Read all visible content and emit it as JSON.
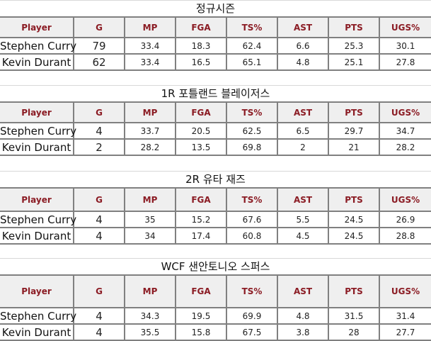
{
  "columns": [
    "Player",
    "G",
    "MP",
    "FGA",
    "TS%",
    "AST",
    "PTS",
    "UGS%"
  ],
  "sections": [
    {
      "title": "정규시즌",
      "rows": [
        [
          "Stephen Curry",
          "79",
          "33.4",
          "18.3",
          "62.4",
          "6.6",
          "25.3",
          "30.1"
        ],
        [
          "Kevin Durant",
          "62",
          "33.4",
          "16.5",
          "65.1",
          "4.8",
          "25.1",
          "27.8"
        ]
      ]
    },
    {
      "title": "1R 포틀랜드 블레이저스",
      "rows": [
        [
          "Stephen Curry",
          "4",
          "33.7",
          "20.5",
          "62.5",
          "6.5",
          "29.7",
          "34.7"
        ],
        [
          "Kevin Durant",
          "2",
          "28.2",
          "13.5",
          "69.8",
          "2",
          "21",
          "28.2"
        ]
      ]
    },
    {
      "title": "2R 유타 재즈",
      "rows": [
        [
          "Stephen Curry",
          "4",
          "35",
          "15.2",
          "67.6",
          "5.5",
          "24.5",
          "26.9"
        ],
        [
          "Kevin Durant",
          "4",
          "34",
          "17.4",
          "60.8",
          "4.5",
          "24.5",
          "28.8"
        ]
      ]
    },
    {
      "title": "WCF 샌안토니오 스퍼스",
      "rows": [
        [
          "Stephen Curry",
          "4",
          "34.3",
          "19.5",
          "69.9",
          "4.8",
          "31.5",
          "31.4"
        ],
        [
          "Kevin Durant",
          "4",
          "35.5",
          "15.8",
          "67.5",
          "3.8",
          "28",
          "27.7"
        ]
      ]
    }
  ]
}
